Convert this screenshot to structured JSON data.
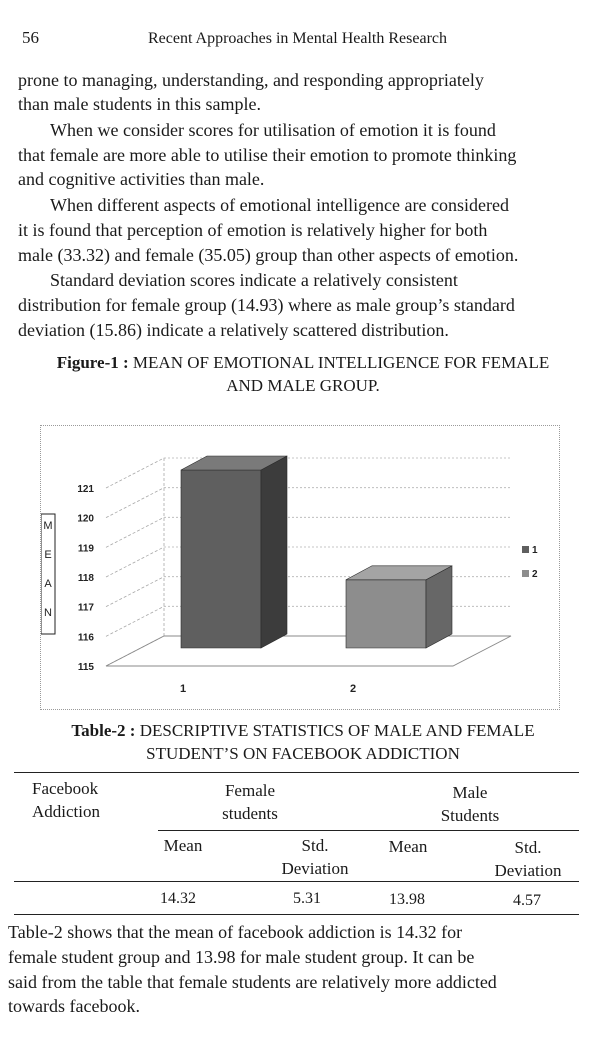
{
  "header": {
    "page_number": "56",
    "running_title": "Recent Approaches in Mental Health Research"
  },
  "body_paragraphs_top": [
    "prone to managing, understanding, and responding appropriately",
    "than male students in this sample.",
    "When we consider scores for utilisation of emotion it is found",
    "that female are more able to utilise their emotion to promote thinking",
    "and cognitive activities than male.",
    "When different aspects of emotional intelligence are considered",
    "it is found that perception of emotion is relatively higher for both",
    "male (33.32) and female (35.05) group than other aspects of emotion.",
    "Standard deviation scores indicate a relatively consistent",
    "distribution for female group (14.93) where as male group’s standard",
    "deviation (15.86) indicate a relatively scattered distribution."
  ],
  "figure": {
    "label": "Figure-1 :",
    "caption_line1": "MEAN OF EMOTIONAL INTELLIGENCE FOR FEMALE",
    "caption_line2": "AND MALE GROUP."
  },
  "chart_data": {
    "type": "bar",
    "categories": [
      "1",
      "2"
    ],
    "values": [
      121,
      117.3
    ],
    "ylabel": "MEAN",
    "ylabel_letters": [
      "M",
      "E",
      "A",
      "N"
    ],
    "yticks": [
      "121",
      "120",
      "119",
      "118",
      "117",
      "116",
      "115"
    ],
    "ylim": [
      115,
      121
    ],
    "legend": [
      "1",
      "2"
    ],
    "legend_position": "right",
    "three_d": true,
    "colors": {
      "bar_front": "#5f5f5f",
      "bar_side": "#3c3c3c",
      "bar_top": "#7a7a7a",
      "bar2_front": "#8d8d8d",
      "bar2_side": "#676767",
      "bar2_top": "#a4a4a4"
    }
  },
  "table": {
    "label": "Table-2 :",
    "caption_line1": "DESCRIPTIVE STATISTICS OF MALE AND FEMALE",
    "caption_line2": "STUDENT’S ON FACEBOOK ADDICTION",
    "col1_line1": "Facebook",
    "col1_line2": "Addiction",
    "female_line1": "Female",
    "female_line2": "students",
    "male_line1": "Male",
    "male_line2": "Students",
    "mean_label": "Mean",
    "std_line1": "Std.",
    "std_line2": "Deviation",
    "female_mean": "14.32",
    "female_sd": "5.31",
    "male_mean": "13.98",
    "male_sd": "4.57"
  },
  "body_paragraphs_bottom": [
    "Table-2 shows that the mean of facebook addiction is 14.32 for",
    "female student group and 13.98 for male student group. It can be",
    "said from the table that female students are relatively more addicted",
    "towards facebook."
  ]
}
